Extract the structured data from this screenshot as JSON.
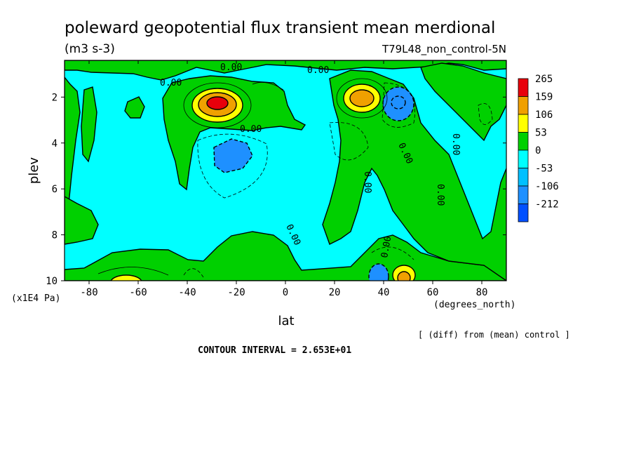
{
  "chart_data": {
    "type": "contour",
    "title": "poleward geopotential flux transient mean merdional",
    "units": "(m3 s-3)",
    "dataset": "T79L48_non_control-5N",
    "xlabel": "lat",
    "x_units": "(degrees_north)",
    "ylabel": "plev",
    "y_units": "(x1E4 Pa)",
    "xlim": [
      -90,
      90
    ],
    "ylim": [
      10,
      0.4
    ],
    "x_ticks": [
      "-80",
      "-60",
      "-40",
      "-20",
      "0",
      "20",
      "40",
      "60",
      "80"
    ],
    "x_tick_values": [
      -80,
      -60,
      -40,
      -20,
      0,
      20,
      40,
      60,
      80
    ],
    "y_ticks": [
      "2",
      "4",
      "6",
      "8",
      "10"
    ],
    "y_tick_values": [
      2,
      4,
      6,
      8,
      10
    ],
    "footer_note": "[ (diff) from (mean) control ]",
    "contour_interval_text": "CONTOUR INTERVAL = 2.653E+01",
    "contour_label": "0.00",
    "colorbar": {
      "labels": [
        "265",
        "159",
        "106",
        "53",
        "0",
        "-53",
        "-106",
        "-212"
      ],
      "colors": [
        "#e8000b",
        "#f0a000",
        "#ffff00",
        "#00d000",
        "#00ffff",
        "#00c0ff",
        "#1e90ff",
        "#0050ff"
      ]
    },
    "features": [
      {
        "kind": "positive_max",
        "lat": -30,
        "plev": 2.1,
        "level": 265
      },
      {
        "kind": "positive_max",
        "lat": 32,
        "plev": 1.9,
        "level": 159
      },
      {
        "kind": "negative_min",
        "lat": 46,
        "plev": 2.0,
        "level": -106
      },
      {
        "kind": "negative_min",
        "lat": -25,
        "plev": 4.0,
        "level": -106
      },
      {
        "kind": "positive_max",
        "lat": 47,
        "plev": 9.9,
        "level": 106
      },
      {
        "kind": "negative_min",
        "lat": 38,
        "plev": 9.8,
        "level": -106
      },
      {
        "kind": "positive_max",
        "lat": -65,
        "plev": 9.95,
        "level": 53
      }
    ]
  }
}
